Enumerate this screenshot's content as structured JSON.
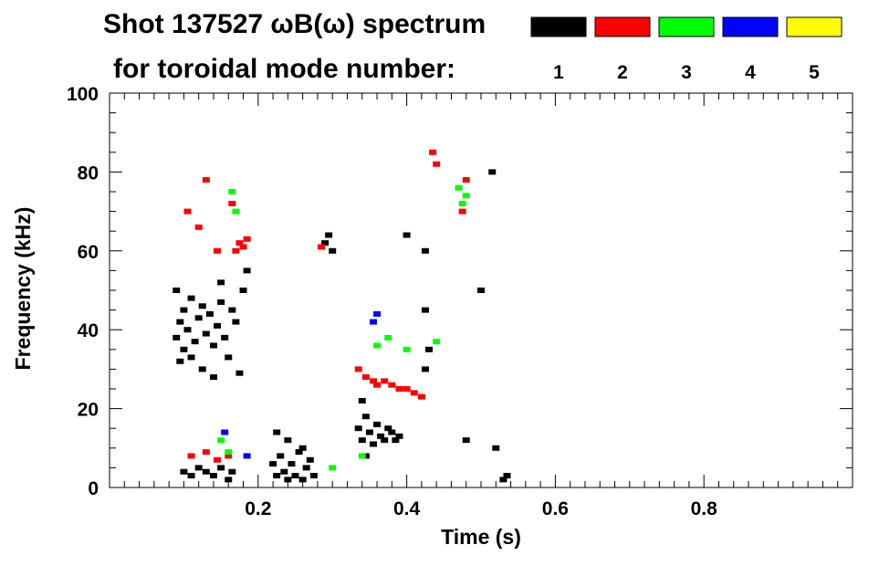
{
  "chart_data": {
    "type": "scatter",
    "title_line1": "Shot 137527 ωB(ω) spectrum",
    "title_line2": "for toroidal mode number:",
    "xlabel": "Time (s)",
    "ylabel": "Frequency (kHz)",
    "xlim": [
      0.0,
      1.0
    ],
    "ylim": [
      0,
      100
    ],
    "x_ticks": [
      0.2,
      0.4,
      0.6,
      0.8
    ],
    "x_tick_labels": [
      "0.2",
      "0.4",
      "0.6",
      "0.8"
    ],
    "y_ticks": [
      0,
      20,
      40,
      60,
      80,
      100
    ],
    "y_tick_labels": [
      "0",
      "20",
      "40",
      "60",
      "80",
      "100"
    ],
    "legend_position": "top-right",
    "series": [
      {
        "name": "1",
        "color": "#000000",
        "points": [
          [
            0.09,
            38
          ],
          [
            0.095,
            42
          ],
          [
            0.1,
            35
          ],
          [
            0.1,
            45
          ],
          [
            0.105,
            40
          ],
          [
            0.11,
            33
          ],
          [
            0.11,
            48
          ],
          [
            0.115,
            37
          ],
          [
            0.12,
            43
          ],
          [
            0.125,
            30
          ],
          [
            0.125,
            46
          ],
          [
            0.13,
            39
          ],
          [
            0.135,
            44
          ],
          [
            0.14,
            36
          ],
          [
            0.145,
            41
          ],
          [
            0.15,
            47
          ],
          [
            0.155,
            38
          ],
          [
            0.16,
            33
          ],
          [
            0.165,
            45
          ],
          [
            0.17,
            42
          ],
          [
            0.175,
            29
          ],
          [
            0.18,
            50
          ],
          [
            0.185,
            55
          ],
          [
            0.09,
            50
          ],
          [
            0.095,
            32
          ],
          [
            0.14,
            28
          ],
          [
            0.15,
            52
          ],
          [
            0.1,
            4
          ],
          [
            0.11,
            3
          ],
          [
            0.12,
            5
          ],
          [
            0.13,
            4
          ],
          [
            0.14,
            3
          ],
          [
            0.15,
            5
          ],
          [
            0.16,
            2
          ],
          [
            0.165,
            4
          ],
          [
            0.22,
            6
          ],
          [
            0.225,
            3
          ],
          [
            0.23,
            8
          ],
          [
            0.235,
            4
          ],
          [
            0.24,
            2
          ],
          [
            0.245,
            6
          ],
          [
            0.25,
            3
          ],
          [
            0.255,
            9
          ],
          [
            0.26,
            2
          ],
          [
            0.265,
            5
          ],
          [
            0.27,
            7
          ],
          [
            0.275,
            3
          ],
          [
            0.225,
            14
          ],
          [
            0.24,
            12
          ],
          [
            0.26,
            10
          ],
          [
            0.29,
            62
          ],
          [
            0.295,
            64
          ],
          [
            0.3,
            60
          ],
          [
            0.335,
            15
          ],
          [
            0.34,
            12
          ],
          [
            0.345,
            18
          ],
          [
            0.35,
            14
          ],
          [
            0.355,
            11
          ],
          [
            0.36,
            16
          ],
          [
            0.365,
            13
          ],
          [
            0.37,
            12
          ],
          [
            0.375,
            15
          ],
          [
            0.38,
            14
          ],
          [
            0.385,
            12
          ],
          [
            0.39,
            13
          ],
          [
            0.34,
            22
          ],
          [
            0.345,
            8
          ],
          [
            0.4,
            64
          ],
          [
            0.425,
            60
          ],
          [
            0.425,
            45
          ],
          [
            0.43,
            35
          ],
          [
            0.425,
            30
          ],
          [
            0.48,
            12
          ],
          [
            0.5,
            50
          ],
          [
            0.515,
            80
          ],
          [
            0.53,
            2
          ],
          [
            0.535,
            3
          ],
          [
            0.52,
            10
          ]
        ]
      },
      {
        "name": "2",
        "color": "#ff0000",
        "points": [
          [
            0.105,
            70
          ],
          [
            0.12,
            66
          ],
          [
            0.13,
            78
          ],
          [
            0.145,
            60
          ],
          [
            0.17,
            60
          ],
          [
            0.175,
            62
          ],
          [
            0.18,
            61
          ],
          [
            0.185,
            63
          ],
          [
            0.165,
            72
          ],
          [
            0.11,
            8
          ],
          [
            0.13,
            9
          ],
          [
            0.145,
            7
          ],
          [
            0.16,
            8
          ],
          [
            0.285,
            61
          ],
          [
            0.335,
            30
          ],
          [
            0.345,
            28
          ],
          [
            0.355,
            27
          ],
          [
            0.36,
            26
          ],
          [
            0.37,
            27
          ],
          [
            0.38,
            26
          ],
          [
            0.39,
            25
          ],
          [
            0.4,
            25
          ],
          [
            0.41,
            24
          ],
          [
            0.42,
            23
          ],
          [
            0.435,
            85
          ],
          [
            0.44,
            82
          ],
          [
            0.475,
            70
          ],
          [
            0.48,
            78
          ]
        ]
      },
      {
        "name": "3",
        "color": "#00ff00",
        "points": [
          [
            0.165,
            75
          ],
          [
            0.17,
            70
          ],
          [
            0.15,
            12
          ],
          [
            0.16,
            9
          ],
          [
            0.3,
            5
          ],
          [
            0.34,
            8
          ],
          [
            0.36,
            36
          ],
          [
            0.375,
            38
          ],
          [
            0.4,
            35
          ],
          [
            0.44,
            37
          ],
          [
            0.47,
            76
          ],
          [
            0.475,
            72
          ],
          [
            0.48,
            74
          ]
        ]
      },
      {
        "name": "4",
        "color": "#0000ff",
        "points": [
          [
            0.155,
            14
          ],
          [
            0.185,
            8
          ],
          [
            0.355,
            42
          ],
          [
            0.36,
            44
          ]
        ]
      },
      {
        "name": "5",
        "color": "#ffff00",
        "points": []
      }
    ]
  }
}
